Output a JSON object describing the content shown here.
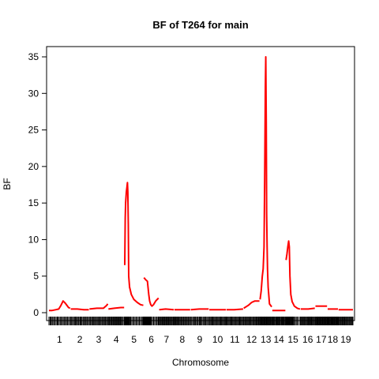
{
  "chart_data": {
    "type": "line",
    "title": "BF of T264 for main",
    "xlabel": "Chromosome",
    "ylabel": "BF",
    "ylim": [
      0,
      35
    ],
    "y_ticks": [
      0,
      5,
      10,
      15,
      20,
      25,
      30,
      35
    ],
    "grid": false,
    "legend": "none",
    "line_color": "#ff0000",
    "x_unit": "cumulative genome position (cM)",
    "chromosomes": [
      {
        "label": "1",
        "start": 0,
        "end": 97
      },
      {
        "label": "2",
        "start": 100,
        "end": 183
      },
      {
        "label": "3",
        "start": 186,
        "end": 270
      },
      {
        "label": "4",
        "start": 273,
        "end": 345
      },
      {
        "label": "5",
        "start": 348,
        "end": 433
      },
      {
        "label": "6",
        "start": 436,
        "end": 503
      },
      {
        "label": "7",
        "start": 506,
        "end": 573
      },
      {
        "label": "8",
        "start": 576,
        "end": 648
      },
      {
        "label": "9",
        "start": 651,
        "end": 733
      },
      {
        "label": "10",
        "start": 736,
        "end": 812
      },
      {
        "label": "11",
        "start": 815,
        "end": 891
      },
      {
        "label": "12",
        "start": 894,
        "end": 966
      },
      {
        "label": "13",
        "start": 969,
        "end": 1022
      },
      {
        "label": "14",
        "start": 1025,
        "end": 1085
      },
      {
        "label": "15",
        "start": 1088,
        "end": 1152
      },
      {
        "label": "16",
        "start": 1155,
        "end": 1220
      },
      {
        "label": "17",
        "start": 1223,
        "end": 1276
      },
      {
        "label": "18",
        "start": 1279,
        "end": 1326
      },
      {
        "label": "19",
        "start": 1329,
        "end": 1395
      }
    ],
    "series": [
      {
        "x": [
          0,
          15,
          30,
          45,
          55,
          65,
          75,
          90,
          97
        ],
        "y": [
          0.3,
          0.3,
          0.4,
          0.5,
          1.0,
          1.6,
          1.3,
          0.7,
          0.6
        ]
      },
      {
        "x": [
          100,
          130,
          160,
          183
        ],
        "y": [
          0.5,
          0.5,
          0.4,
          0.4
        ]
      },
      {
        "x": [
          186,
          220,
          250,
          265,
          270
        ],
        "y": [
          0.5,
          0.6,
          0.6,
          1.0,
          1.2
        ]
      },
      {
        "x": [
          273,
          300,
          330,
          345
        ],
        "y": [
          0.5,
          0.6,
          0.7,
          0.7
        ]
      },
      {
        "x": [
          348,
          350,
          352,
          355,
          358,
          360,
          362,
          364,
          366,
          370,
          378,
          390,
          405,
          420,
          433
        ],
        "y": [
          6.5,
          13,
          15,
          16.5,
          17.2,
          17.8,
          16.5,
          12,
          5,
          3.5,
          2.5,
          1.8,
          1.4,
          1.1,
          1.0
        ]
      },
      {
        "x": [
          436,
          444,
          452,
          458,
          462,
          467,
          473,
          480,
          490,
          503
        ],
        "y": [
          4.8,
          4.5,
          4.3,
          2.5,
          1.6,
          1.1,
          0.9,
          1.1,
          1.6,
          2.0
        ]
      },
      {
        "x": [
          506,
          535,
          573
        ],
        "y": [
          0.4,
          0.5,
          0.4
        ]
      },
      {
        "x": [
          576,
          610,
          648
        ],
        "y": [
          0.4,
          0.4,
          0.4
        ]
      },
      {
        "x": [
          651,
          690,
          733
        ],
        "y": [
          0.4,
          0.5,
          0.5
        ]
      },
      {
        "x": [
          736,
          775,
          812
        ],
        "y": [
          0.4,
          0.4,
          0.4
        ]
      },
      {
        "x": [
          815,
          850,
          891
        ],
        "y": [
          0.4,
          0.4,
          0.5
        ]
      },
      {
        "x": [
          894,
          915,
          930,
          945,
          966
        ],
        "y": [
          0.6,
          1.0,
          1.4,
          1.6,
          1.6
        ]
      },
      {
        "x": [
          969,
          974,
          979,
          983,
          987,
          990,
          993,
          995,
          997,
          999,
          1001,
          1003,
          1006,
          1012,
          1022
        ],
        "y": [
          1.8,
          3.0,
          5.0,
          6.0,
          9.0,
          18,
          31,
          35,
          26,
          13.5,
          9.0,
          6.0,
          3.5,
          1.2,
          0.8
        ]
      },
      {
        "x": [
          1025,
          1055,
          1085
        ],
        "y": [
          0.3,
          0.3,
          0.3
        ]
      },
      {
        "x": [
          1088,
          1092,
          1096,
          1100,
          1103,
          1106,
          1110,
          1116,
          1126,
          1140,
          1152
        ],
        "y": [
          7.2,
          8.0,
          9.0,
          9.8,
          9.0,
          5.0,
          2.5,
          1.5,
          0.9,
          0.6,
          0.5
        ]
      },
      {
        "x": [
          1155,
          1190,
          1220
        ],
        "y": [
          0.5,
          0.5,
          0.6
        ]
      },
      {
        "x": [
          1223,
          1250,
          1276
        ],
        "y": [
          0.9,
          0.9,
          0.9
        ]
      },
      {
        "x": [
          1279,
          1300,
          1326
        ],
        "y": [
          0.5,
          0.5,
          0.5
        ]
      },
      {
        "x": [
          1329,
          1360,
          1395
        ],
        "y": [
          0.4,
          0.4,
          0.4
        ]
      }
    ],
    "markers": [
      0,
      5,
      9,
      14,
      18,
      23,
      28,
      33,
      38,
      42,
      47,
      52,
      57,
      61,
      66,
      71,
      76,
      80,
      85,
      90,
      95,
      100,
      104,
      108,
      113,
      117,
      121,
      125,
      130,
      134,
      138,
      143,
      147,
      151,
      156,
      160,
      164,
      168,
      173,
      177,
      181,
      186,
      190,
      195,
      199,
      203,
      207,
      211,
      215,
      220,
      224,
      228,
      232,
      236,
      240,
      245,
      249,
      253,
      257,
      261,
      265,
      270,
      273,
      277,
      280,
      284,
      288,
      291,
      295,
      299,
      302,
      306,
      310,
      313,
      317,
      321,
      324,
      328,
      332,
      336,
      340,
      345,
      348,
      350,
      351,
      353,
      355,
      357,
      358,
      360,
      362,
      364,
      365,
      367,
      369,
      371,
      375,
      380,
      385,
      390,
      395,
      400,
      405,
      410,
      415,
      420,
      425,
      430,
      433,
      436,
      438,
      440,
      442,
      444,
      446,
      448,
      450,
      452,
      454,
      456,
      458,
      460,
      462,
      464,
      466,
      468,
      470,
      475,
      480,
      485,
      490,
      495,
      500,
      503,
      506,
      510,
      513,
      517,
      520,
      524,
      527,
      531,
      535,
      538,
      542,
      545,
      549,
      552,
      556,
      559,
      563,
      566,
      570,
      573,
      576,
      580,
      583,
      587,
      591,
      594,
      598,
      602,
      606,
      609,
      613,
      617,
      620,
      624,
      628,
      631,
      635,
      639,
      643,
      648,
      651,
      655,
      660,
      664,
      668,
      672,
      677,
      681,
      685,
      690,
      694,
      698,
      702,
      707,
      711,
      715,
      719,
      724,
      728,
      733,
      736,
      740,
      744,
      748,
      752,
      756,
      760,
      764,
      768,
      772,
      776,
      780,
      784,
      788,
      792,
      796,
      800,
      804,
      808,
      812,
      815,
      819,
      823,
      827,
      831,
      835,
      839,
      843,
      847,
      851,
      855,
      859,
      863,
      867,
      871,
      875,
      879,
      883,
      887,
      891,
      894,
      898,
      902,
      905,
      909,
      913,
      917,
      921,
      924,
      928,
      932,
      936,
      940,
      943,
      947,
      951,
      955,
      959,
      962,
      966,
      969,
      972,
      975,
      978,
      981,
      983,
      986,
      989,
      992,
      995,
      998,
      1000,
      1003,
      1006,
      1009,
      1012,
      1015,
      1018,
      1022,
      1025,
      1028,
      1031,
      1034,
      1037,
      1041,
      1044,
      1047,
      1050,
      1053,
      1056,
      1059,
      1062,
      1066,
      1069,
      1072,
      1075,
      1078,
      1081,
      1085,
      1088,
      1090,
      1092,
      1094,
      1096,
      1098,
      1100,
      1102,
      1104,
      1106,
      1108,
      1110,
      1113,
      1116,
      1119,
      1122,
      1126,
      1130,
      1135,
      1140,
      1145,
      1152,
      1155,
      1158,
      1162,
      1165,
      1169,
      1172,
      1175,
      1179,
      1182,
      1186,
      1189,
      1192,
      1196,
      1199,
      1203,
      1206,
      1209,
      1213,
      1216,
      1220,
      1223,
      1226,
      1229,
      1232,
      1234,
      1237,
      1240,
      1243,
      1246,
      1249,
      1251,
      1254,
      1257,
      1260,
      1263,
      1266,
      1268,
      1271,
      1274,
      1276,
      1279,
      1281,
      1284,
      1286,
      1289,
      1291,
      1294,
      1296,
      1299,
      1301,
      1304,
      1306,
      1309,
      1311,
      1314,
      1316,
      1319,
      1321,
      1324,
      1326,
      1329,
      1332,
      1336,
      1339,
      1343,
      1346,
      1350,
      1353,
      1357,
      1360,
      1364,
      1367,
      1371,
      1374,
      1378,
      1381,
      1385,
      1388,
      1392,
      1395
    ]
  }
}
